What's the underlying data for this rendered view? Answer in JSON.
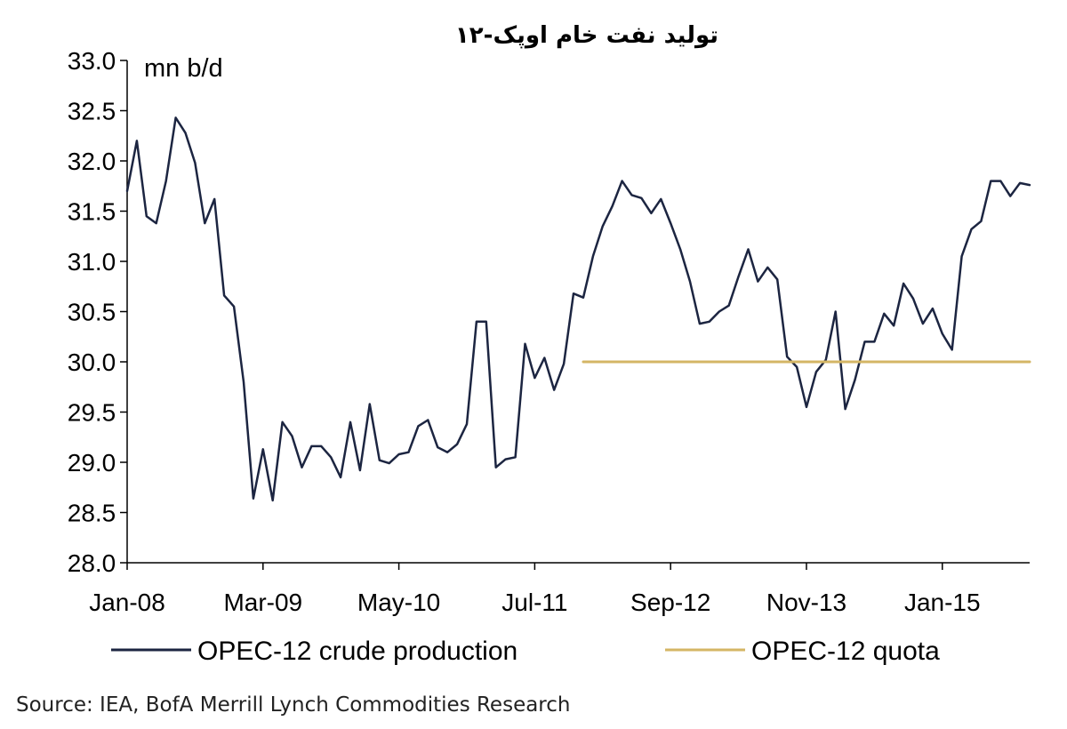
{
  "chart_data": {
    "type": "line",
    "title": "تولید نفت خام اوپک-۱۲",
    "ylabel": "mn b/d",
    "ylim": [
      28.0,
      33.0
    ],
    "y_ticks": [
      "28.0",
      "28.5",
      "29.0",
      "29.5",
      "30.0",
      "30.5",
      "31.0",
      "31.5",
      "32.0",
      "32.5",
      "33.0"
    ],
    "x_ticks": [
      "Jan-08",
      "Mar-09",
      "May-10",
      "Jul-11",
      "Sep-12",
      "Nov-13",
      "Jan-15"
    ],
    "x_range": [
      "2008-01",
      "2015-09"
    ],
    "legend_placement": "bottom",
    "grid": false,
    "series": [
      {
        "name": "OPEC-12 crude production",
        "color": "#1c2541",
        "points": [
          [
            "2008-01",
            31.7
          ],
          [
            "2008-02",
            32.2
          ],
          [
            "2008-03",
            31.45
          ],
          [
            "2008-04",
            31.38
          ],
          [
            "2008-05",
            31.8
          ],
          [
            "2008-06",
            32.43
          ],
          [
            "2008-07",
            32.28
          ],
          [
            "2008-08",
            31.98
          ],
          [
            "2008-09",
            31.38
          ],
          [
            "2008-10",
            31.62
          ],
          [
            "2008-11",
            30.66
          ],
          [
            "2008-12",
            30.55
          ],
          [
            "2009-01",
            29.8
          ],
          [
            "2009-02",
            28.64
          ],
          [
            "2009-03",
            29.13
          ],
          [
            "2009-04",
            28.62
          ],
          [
            "2009-05",
            29.4
          ],
          [
            "2009-06",
            29.26
          ],
          [
            "2009-07",
            28.95
          ],
          [
            "2009-08",
            29.16
          ],
          [
            "2009-09",
            29.16
          ],
          [
            "2009-10",
            29.05
          ],
          [
            "2009-11",
            28.85
          ],
          [
            "2009-12",
            29.4
          ],
          [
            "2010-01",
            28.92
          ],
          [
            "2010-02",
            29.58
          ],
          [
            "2010-03",
            29.02
          ],
          [
            "2010-04",
            28.99
          ],
          [
            "2010-05",
            29.08
          ],
          [
            "2010-06",
            29.1
          ],
          [
            "2010-07",
            29.36
          ],
          [
            "2010-08",
            29.42
          ],
          [
            "2010-09",
            29.15
          ],
          [
            "2010-10",
            29.1
          ],
          [
            "2010-11",
            29.18
          ],
          [
            "2010-12",
            29.38
          ],
          [
            "2011-01",
            30.4
          ],
          [
            "2011-02",
            30.4
          ],
          [
            "2011-03",
            28.95
          ],
          [
            "2011-04",
            29.03
          ],
          [
            "2011-05",
            29.05
          ],
          [
            "2011-06",
            30.18
          ],
          [
            "2011-07",
            29.84
          ],
          [
            "2011-08",
            30.04
          ],
          [
            "2011-09",
            29.72
          ],
          [
            "2011-10",
            29.98
          ],
          [
            "2011-11",
            30.68
          ],
          [
            "2011-12",
            30.64
          ],
          [
            "2012-01",
            31.05
          ],
          [
            "2012-02",
            31.35
          ],
          [
            "2012-03",
            31.55
          ],
          [
            "2012-04",
            31.8
          ],
          [
            "2012-05",
            31.66
          ],
          [
            "2012-06",
            31.63
          ],
          [
            "2012-07",
            31.48
          ],
          [
            "2012-08",
            31.62
          ],
          [
            "2012-09",
            31.38
          ],
          [
            "2012-10",
            31.12
          ],
          [
            "2012-11",
            30.8
          ],
          [
            "2012-12",
            30.38
          ],
          [
            "2013-01",
            30.4
          ],
          [
            "2013-02",
            30.5
          ],
          [
            "2013-03",
            30.56
          ],
          [
            "2013-04",
            30.85
          ],
          [
            "2013-05",
            31.12
          ],
          [
            "2013-06",
            30.8
          ],
          [
            "2013-07",
            30.94
          ],
          [
            "2013-08",
            30.82
          ],
          [
            "2013-09",
            30.05
          ],
          [
            "2013-10",
            29.95
          ],
          [
            "2013-11",
            29.55
          ],
          [
            "2013-12",
            29.9
          ],
          [
            "2014-01",
            30.02
          ],
          [
            "2014-02",
            30.5
          ],
          [
            "2014-03",
            29.53
          ],
          [
            "2014-04",
            29.82
          ],
          [
            "2014-05",
            30.2
          ],
          [
            "2014-06",
            30.2
          ],
          [
            "2014-07",
            30.48
          ],
          [
            "2014-08",
            30.36
          ],
          [
            "2014-09",
            30.78
          ],
          [
            "2014-10",
            30.63
          ],
          [
            "2014-11",
            30.38
          ],
          [
            "2014-12",
            30.53
          ],
          [
            "2015-01",
            30.28
          ],
          [
            "2015-02",
            30.12
          ],
          [
            "2015-03",
            31.05
          ],
          [
            "2015-04",
            31.32
          ],
          [
            "2015-05",
            31.4
          ],
          [
            "2015-06",
            31.8
          ],
          [
            "2015-07",
            31.8
          ],
          [
            "2015-08",
            31.65
          ],
          [
            "2015-09",
            31.78
          ],
          [
            "2015-10",
            31.76
          ]
        ]
      },
      {
        "name": "OPEC-12 quota",
        "color": "#d4b665",
        "points": [
          [
            "2011-12",
            30.0
          ],
          [
            "2015-10",
            30.0
          ]
        ]
      }
    ],
    "source": "Source: IEA, BofA Merrill Lynch Commodities Research"
  }
}
